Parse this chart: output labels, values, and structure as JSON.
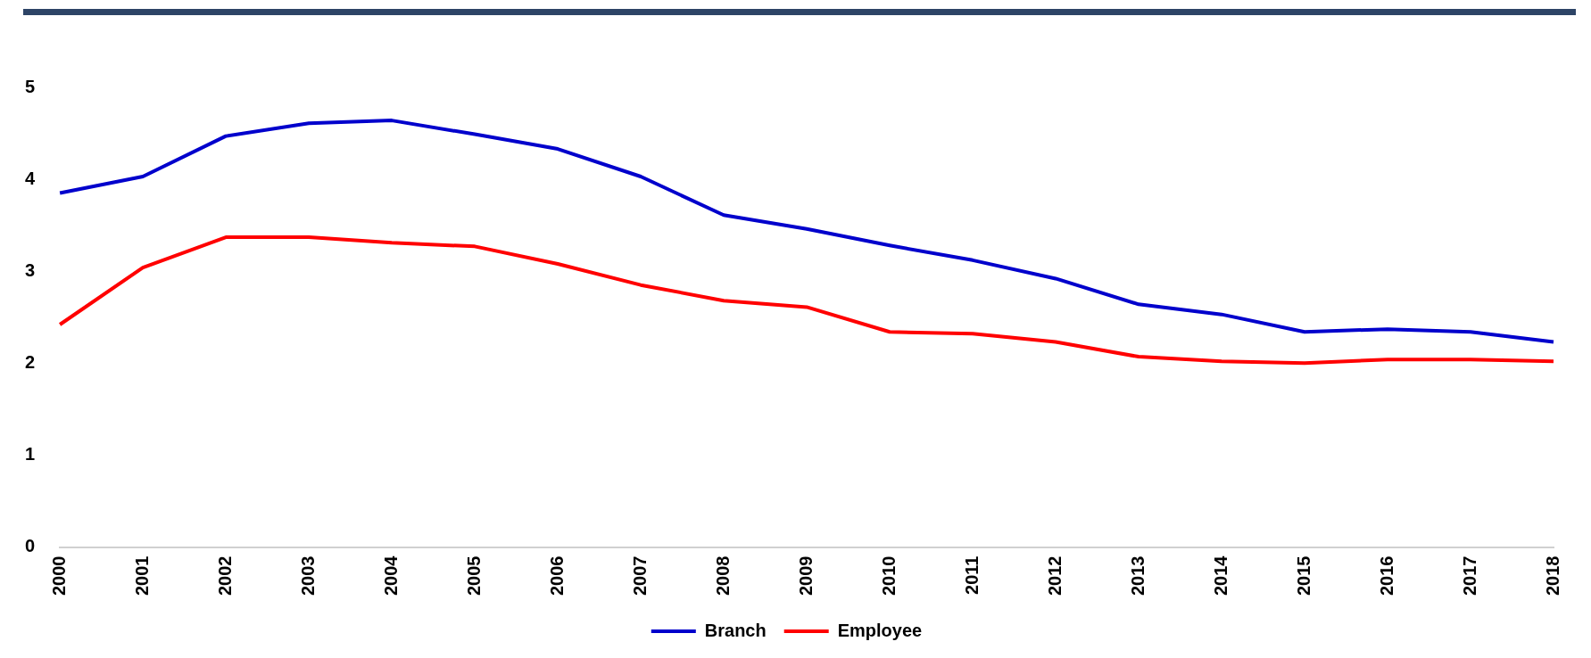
{
  "chart_data": {
    "type": "line",
    "categories": [
      "2000",
      "2001",
      "2002",
      "2003",
      "2004",
      "2005",
      "2006",
      "2007",
      "2008",
      "2009",
      "2010",
      "2011",
      "2012",
      "2013",
      "2014",
      "2015",
      "2016",
      "2017",
      "2018"
    ],
    "series": [
      {
        "name": "Branch",
        "color": "#0000cc",
        "values": [
          3.85,
          4.03,
          4.47,
          4.61,
          4.64,
          4.49,
          4.33,
          4.03,
          3.61,
          3.46,
          3.28,
          3.12,
          2.92,
          2.64,
          2.53,
          2.34,
          2.37,
          2.34,
          2.23
        ]
      },
      {
        "name": "Employee",
        "color": "#ff0000",
        "values": [
          2.42,
          3.04,
          3.37,
          3.37,
          3.31,
          3.27,
          3.08,
          2.85,
          2.68,
          2.61,
          2.34,
          2.32,
          2.23,
          2.07,
          2.02,
          2.0,
          2.04,
          2.04,
          2.02
        ]
      }
    ],
    "ylim": [
      0,
      5
    ],
    "yticks": [
      0,
      1,
      2,
      3,
      4,
      5
    ],
    "grid": false,
    "legend": "bottom",
    "marker": "none",
    "line_style": "solid"
  }
}
